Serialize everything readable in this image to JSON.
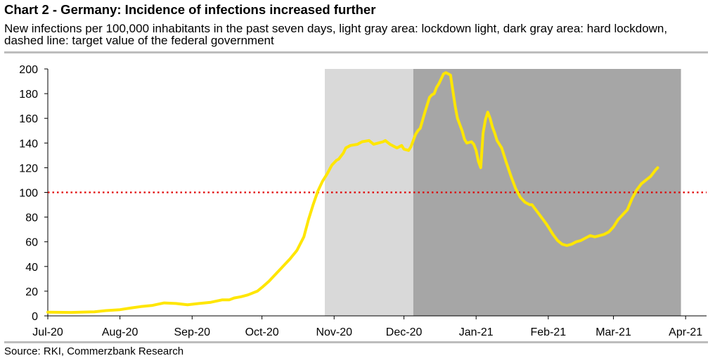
{
  "header": {
    "title": "Chart 2 - Germany: Incidence of infections increased further",
    "subtitle": "New infections per 100,000 inhabitants in the past seven days, light gray area: lockdown light, dark gray area: hard lockdown, dashed line: target value of the federal government"
  },
  "footer": {
    "source": "Source: RKI, Commerzbank Research"
  },
  "colors": {
    "series": "#ffe600",
    "target_line": "#e00000",
    "lockdown_light": "#d9d9d9",
    "hard_lockdown": "#a6a6a6",
    "axis": "#000000"
  },
  "chart_data": {
    "type": "line",
    "title": "Chart 2 - Germany: Incidence of infections increased further",
    "xlabel": "",
    "ylabel": "",
    "ylim": [
      0,
      200
    ],
    "yticks": [
      0,
      20,
      40,
      60,
      80,
      100,
      120,
      140,
      160,
      180,
      200
    ],
    "x_range_days": [
      0,
      283
    ],
    "x_ticks": [
      {
        "day": 0,
        "label": "Jul-20"
      },
      {
        "day": 31,
        "label": "Aug-20"
      },
      {
        "day": 62,
        "label": "Sep-20"
      },
      {
        "day": 92,
        "label": "Oct-20"
      },
      {
        "day": 123,
        "label": "Nov-20"
      },
      {
        "day": 153,
        "label": "Dec-20"
      },
      {
        "day": 184,
        "label": "Jan-21"
      },
      {
        "day": 215,
        "label": "Feb-21"
      },
      {
        "day": 243,
        "label": "Mar-21"
      },
      {
        "day": 274,
        "label": "Apr-21"
      }
    ],
    "x_axis_note": "x values are days since 1 Jul 2020",
    "shaded_regions": [
      {
        "name": "lockdown light",
        "start_day": 119,
        "end_day": 157,
        "color_key": "lockdown_light"
      },
      {
        "name": "hard lockdown",
        "start_day": 157,
        "end_day": 272,
        "color_key": "hard_lockdown"
      }
    ],
    "reference_lines": [
      {
        "name": "target value of the federal government",
        "y": 100,
        "style": "dotted",
        "color_key": "target_line"
      }
    ],
    "series": [
      {
        "name": "New infections per 100,000 inhabitants (7 days)",
        "color_key": "series",
        "x": [
          0,
          10,
          20,
          25,
          31,
          36,
          40,
          45,
          50,
          55,
          60,
          65,
          70,
          75,
          78,
          80,
          83,
          86,
          90,
          92,
          95,
          98,
          101,
          104,
          107,
          110,
          112,
          114,
          116,
          118,
          120,
          122,
          124,
          125,
          127,
          128,
          130,
          133,
          135,
          138,
          140,
          142,
          144,
          145,
          147,
          148,
          150,
          152,
          153,
          155,
          156,
          157,
          158,
          159,
          160,
          162,
          163,
          164,
          165,
          166,
          167,
          168,
          169,
          170,
          171,
          172,
          173,
          175,
          176,
          178,
          179,
          180,
          182,
          183,
          184,
          185,
          186,
          187,
          188,
          189,
          190,
          191,
          192,
          193,
          195,
          197,
          199,
          201,
          203,
          205,
          207,
          208,
          210,
          212,
          214,
          215,
          217,
          219,
          221,
          223,
          225,
          227,
          229,
          231,
          233,
          235,
          237,
          239,
          241,
          243,
          245,
          247,
          249,
          251,
          253,
          255,
          257,
          259,
          261,
          262
        ],
        "values": [
          3,
          2.8,
          3.3,
          4.3,
          5,
          6.5,
          7.5,
          8.5,
          10.5,
          10,
          9,
          10,
          11,
          13,
          13,
          14.5,
          15.5,
          17,
          20,
          23,
          28,
          34,
          40,
          46,
          53,
          64,
          78,
          90,
          101,
          109,
          115,
          122,
          126,
          127,
          132,
          136,
          138,
          139,
          141,
          142,
          139,
          140,
          141,
          142,
          139,
          138,
          136,
          138,
          135,
          134,
          137,
          142,
          147,
          150,
          152,
          165,
          171,
          177,
          179,
          180,
          185,
          188,
          192,
          196,
          197,
          196,
          195,
          170,
          160,
          150,
          143,
          140,
          141,
          139,
          134,
          125,
          120,
          148,
          159,
          165,
          160,
          153,
          148,
          142,
          136,
          124,
          113,
          103,
          96,
          92,
          90,
          90,
          85,
          80,
          75,
          72,
          66,
          61,
          58,
          57,
          58,
          60,
          61,
          63,
          65,
          64,
          65,
          66,
          68,
          72,
          78,
          82,
          86,
          95,
          102,
          107,
          110,
          113,
          118,
          120
        ]
      }
    ]
  }
}
